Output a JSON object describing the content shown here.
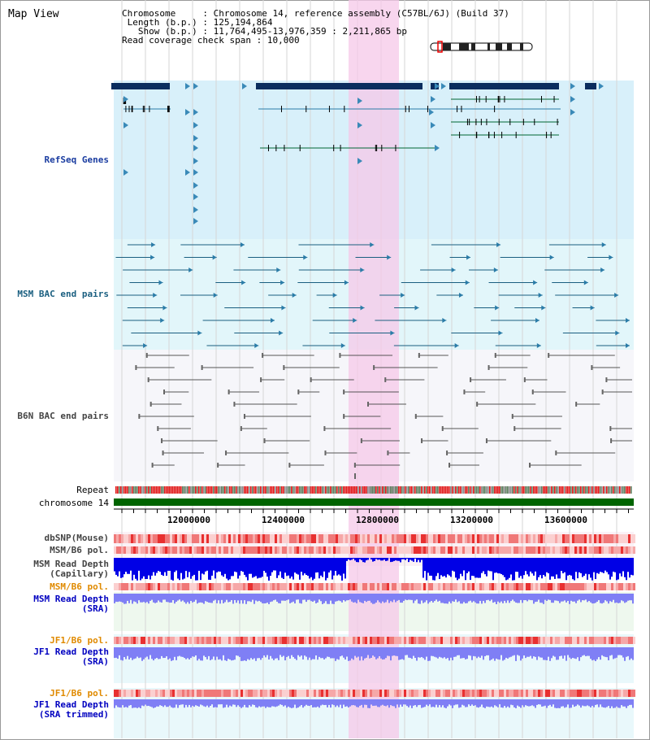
{
  "title": "Map View",
  "info": {
    "chromosome_label": "Chromosome",
    "chromosome_value": "Chromosome 14, reference assembly (C57BL/6J) (Build 37)",
    "length_label": "Length (b.p.)",
    "length_value": "125,194,864",
    "show_label": "Show (b.p.)",
    "show_value": "11,764,495-13,976,359 : 2,211,865 bp",
    "span_label": "Read coverage check span",
    "span_value": "10,000"
  },
  "tracks": {
    "refseq": "RefSeq Genes",
    "msm_bac": "MSM BAC end pairs",
    "b6n_bac": "B6N BAC end pairs",
    "repeat": "Repeat",
    "chromosome": "chromosome 14",
    "dbsnp": "dbSNP(Mouse)",
    "msm_b6_pol_1": "MSM/B6 pol.",
    "msm_read_depth_cap_1": "MSM Read Depth",
    "msm_read_depth_cap_2": "(Capillary)",
    "msm_b6_pol_2": "MSM/B6 pol.",
    "msm_read_depth_sra_1": "MSM Read Depth",
    "msm_read_depth_sra_2": "(SRA)",
    "jf1_b6_pol_1": "JF1/B6 pol.",
    "jf1_read_depth_1": "JF1 Read Depth",
    "jf1_read_depth_2": "(SRA)",
    "jf1_b6_pol_2": "JF1/B6 pol.",
    "jf1_read_depth_trim_1": "JF1 Read Depth",
    "jf1_read_depth_trim_2": "(SRA trimmed)"
  },
  "axis_ticks": [
    "12000000",
    "12400000",
    "12800000",
    "13200000",
    "13600000"
  ],
  "colors": {
    "refseq_bg": "#d8f0fa",
    "msm_bg": "#e2f6fa",
    "b6n_bg": "#f6f6fa",
    "highlight": "#f5c8e8",
    "chromosome_bar": "#006400",
    "depth_dark": "#0000e6",
    "depth_light": "#7f7ff5",
    "pol_red": "#f08080",
    "refseq_dark": "#0a2d5e"
  }
}
